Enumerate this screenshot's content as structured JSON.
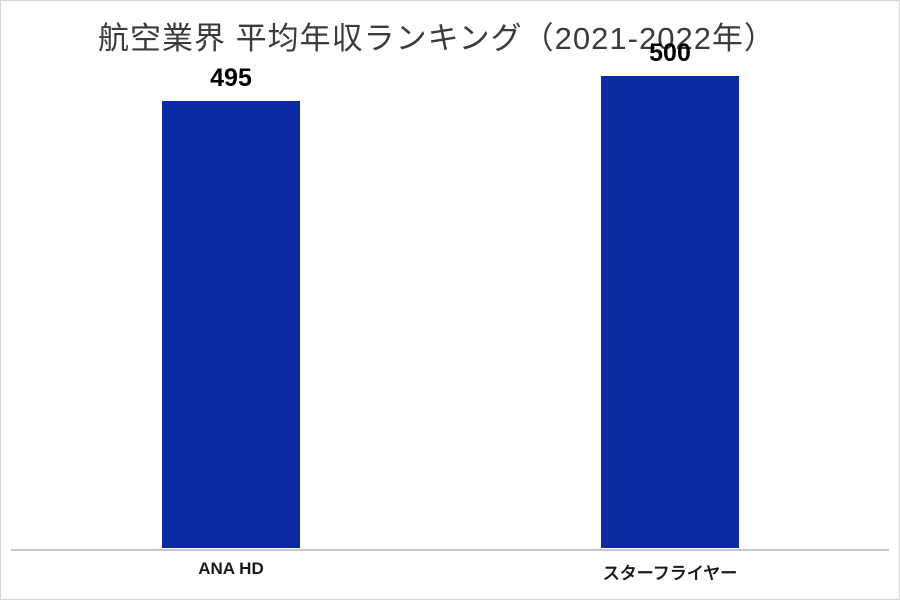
{
  "chart_data": {
    "type": "bar",
    "title": "航空業界 平均年収ランキング（2021-2022年）",
    "categories": [
      "ANA HD",
      "スターフライヤー"
    ],
    "values": [
      495,
      500
    ],
    "xlabel": "",
    "ylabel": "",
    "ylim": [
      406,
      510
    ],
    "y_axis_visible": false,
    "grid": false,
    "legend": false,
    "data_labels": true,
    "colors": {
      "bar": "#0a29a3",
      "title_text": "#3b3b3b",
      "value_label_text": "#000000",
      "category_label_text": "#1a1a1a",
      "axis_line": "#c6c6cc",
      "background": "#ffffff",
      "frame_border": "#d4d4d6"
    }
  }
}
